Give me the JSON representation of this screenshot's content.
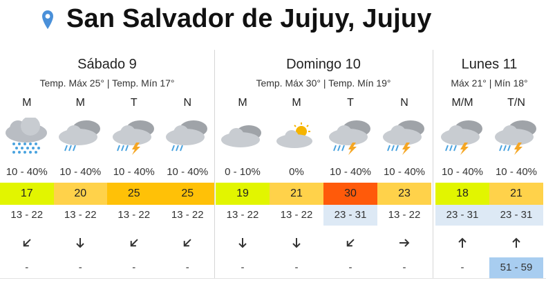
{
  "header": {
    "title": "San Salvador de Jujuy, Jujuy"
  },
  "colors": {
    "pin": "#4a90d9",
    "uv_yellow_green": "#e2f500",
    "uv_yellow": "#ffd24a",
    "uv_orange": "#ffc107",
    "uv_red": "#ff5a0a",
    "range_highlight": "#dde9f5",
    "extra_highlight": "#a8cdf0"
  },
  "days": [
    {
      "name": "Sábado 9",
      "temps": "Temp. Máx 25° | Temp. Mín 17°",
      "periods": [
        "M",
        "M",
        "T",
        "N"
      ],
      "icons": [
        "heavy-rain-cloud-icon",
        "rain-cloud-icon",
        "storm-cloud-icon",
        "rain-cloud-icon"
      ],
      "probs": [
        "10 - 40%",
        "10 - 40%",
        "10 - 40%",
        "10 - 40%"
      ],
      "uv": [
        "17",
        "20",
        "25",
        "25"
      ],
      "ranges": [
        "13 - 22",
        "13 - 22",
        "13 - 22",
        "13 - 22"
      ],
      "winds": [
        "arrow-down-left-icon",
        "arrow-down-icon",
        "arrow-down-left-icon",
        "arrow-down-left-icon"
      ],
      "extras": [
        "-",
        "-",
        "-",
        "-"
      ]
    },
    {
      "name": "Domingo 10",
      "temps": "Temp. Máx 30° | Temp. Mín 19°",
      "periods": [
        "M",
        "M",
        "T",
        "N"
      ],
      "icons": [
        "cloudy-icon",
        "partly-cloudy-icon",
        "storm-cloud-icon",
        "storm-cloud-icon"
      ],
      "probs": [
        "0 - 10%",
        "0%",
        "10 - 40%",
        "10 - 40%"
      ],
      "uv": [
        "19",
        "21",
        "30",
        "23"
      ],
      "ranges": [
        "13 - 22",
        "13 - 22",
        "23 - 31",
        "13 - 22"
      ],
      "winds": [
        "arrow-down-icon",
        "arrow-down-icon",
        "arrow-down-left-icon",
        "arrow-right-icon"
      ],
      "extras": [
        "-",
        "-",
        "-",
        "-"
      ]
    },
    {
      "name": "Lunes 11",
      "temps": "Máx 21° | Mín 18°",
      "periods": [
        "M/M",
        "T/N"
      ],
      "icons": [
        "storm-cloud-icon",
        "storm-cloud-icon"
      ],
      "probs": [
        "10 - 40%",
        "10 - 40%"
      ],
      "uv": [
        "18",
        "21"
      ],
      "ranges": [
        "23 - 31",
        "23 - 31"
      ],
      "winds": [
        "arrow-up-icon",
        "arrow-up-icon"
      ],
      "extras": [
        "-",
        "51 - 59"
      ]
    }
  ]
}
